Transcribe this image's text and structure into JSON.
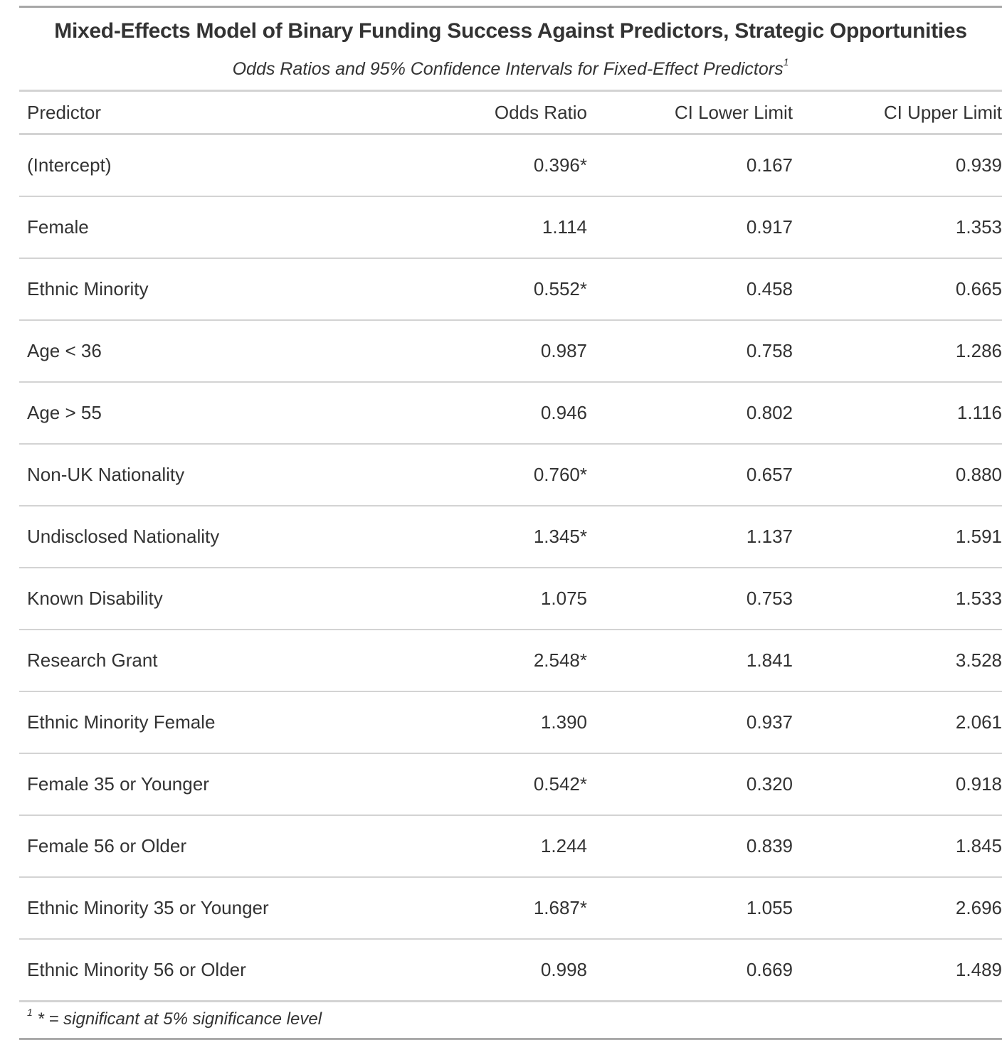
{
  "table": {
    "title": "Mixed-Effects Model of Binary Funding Success Against Predictors, Strategic Opportunities",
    "subtitle": "Odds Ratios and 95% Confidence Intervals for Fixed-Effect Predictors",
    "subtitle_mark": "1",
    "columns": [
      "Predictor",
      "Odds Ratio",
      "CI Lower Limit",
      "CI Upper Limit"
    ],
    "rows": [
      {
        "predictor": "(Intercept)",
        "odds_ratio": "0.396*",
        "ci_lower": "0.167",
        "ci_upper": "0.939"
      },
      {
        "predictor": "Female",
        "odds_ratio": "1.114",
        "ci_lower": "0.917",
        "ci_upper": "1.353"
      },
      {
        "predictor": "Ethnic Minority",
        "odds_ratio": "0.552*",
        "ci_lower": "0.458",
        "ci_upper": "0.665"
      },
      {
        "predictor": "Age < 36",
        "odds_ratio": "0.987",
        "ci_lower": "0.758",
        "ci_upper": "1.286"
      },
      {
        "predictor": "Age > 55",
        "odds_ratio": "0.946",
        "ci_lower": "0.802",
        "ci_upper": "1.116"
      },
      {
        "predictor": "Non-UK Nationality",
        "odds_ratio": "0.760*",
        "ci_lower": "0.657",
        "ci_upper": "0.880"
      },
      {
        "predictor": "Undisclosed Nationality",
        "odds_ratio": "1.345*",
        "ci_lower": "1.137",
        "ci_upper": "1.591"
      },
      {
        "predictor": "Known Disability",
        "odds_ratio": "1.075",
        "ci_lower": "0.753",
        "ci_upper": "1.533"
      },
      {
        "predictor": "Research Grant",
        "odds_ratio": "2.548*",
        "ci_lower": "1.841",
        "ci_upper": "3.528"
      },
      {
        "predictor": "Ethnic Minority Female",
        "odds_ratio": "1.390",
        "ci_lower": "0.937",
        "ci_upper": "2.061"
      },
      {
        "predictor": "Female 35 or Younger",
        "odds_ratio": "0.542*",
        "ci_lower": "0.320",
        "ci_upper": "0.918"
      },
      {
        "predictor": "Female 56 or Older",
        "odds_ratio": "1.244",
        "ci_lower": "0.839",
        "ci_upper": "1.845"
      },
      {
        "predictor": "Ethnic Minority 35 or Younger",
        "odds_ratio": "1.687*",
        "ci_lower": "1.055",
        "ci_upper": "2.696"
      },
      {
        "predictor": "Ethnic Minority 56 or Older",
        "odds_ratio": "0.998",
        "ci_lower": "0.669",
        "ci_upper": "1.489"
      }
    ],
    "footnote_mark": "1",
    "footnote": "* = significant at 5% significance level"
  }
}
